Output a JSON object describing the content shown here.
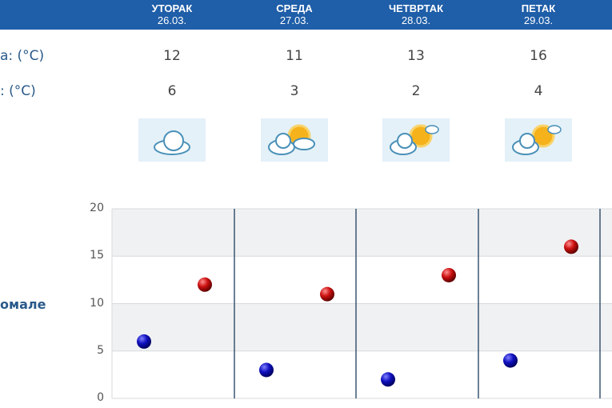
{
  "header": {
    "days": [
      {
        "name": "УТОРАК",
        "date": "26.03."
      },
      {
        "name": "СРЕДА",
        "date": "27.03."
      },
      {
        "name": "ЧЕТВРТАК",
        "date": "28.03."
      },
      {
        "name": "ПЕТАК",
        "date": "29.03."
      }
    ]
  },
  "rows": {
    "max_label": "а: (°C)",
    "min_label": ": (°C)",
    "max": [
      "12",
      "11",
      "13",
      "16"
    ],
    "min": [
      "6",
      "3",
      "2",
      "4"
    ]
  },
  "icons": [
    "cloudy-icon",
    "partly-cloudy-icon",
    "sun-cloud-icon",
    "sun-cloud-icon"
  ],
  "side_label": "омале",
  "chart_data": {
    "type": "scatter",
    "categories": [
      "26.03.",
      "27.03.",
      "28.03.",
      "29.03."
    ],
    "series": [
      {
        "values": [
          6,
          3,
          2,
          4
        ],
        "color": "#1010c0"
      },
      {
        "values": [
          12,
          11,
          13,
          16
        ],
        "color": "#cc1010"
      }
    ],
    "ylim": [
      0,
      20
    ],
    "yticks": [
      "0",
      "5",
      "10",
      "15",
      "20"
    ],
    "grid": true
  }
}
